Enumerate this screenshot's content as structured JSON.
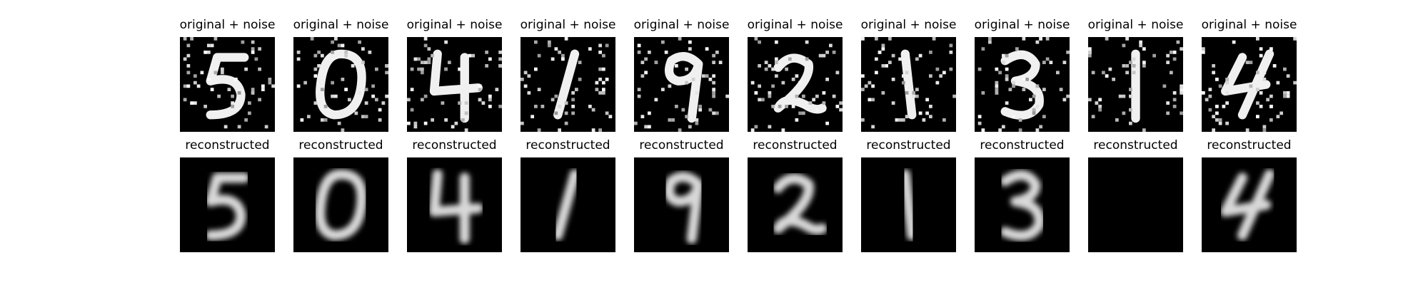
{
  "row_titles": {
    "noisy": "original + noise",
    "reconstructed": "reconstructed"
  },
  "digits": [
    {
      "label": "5"
    },
    {
      "label": "0"
    },
    {
      "label": "4"
    },
    {
      "label": "1"
    },
    {
      "label": "9"
    },
    {
      "label": "2"
    },
    {
      "label": "1"
    },
    {
      "label": "3"
    },
    {
      "label": "1"
    },
    {
      "label": "4"
    }
  ],
  "colors": {
    "image_background": "#000000",
    "digit_stroke": "#f0f0f0",
    "noise_dot": "#ffffff",
    "page_background": "#ffffff"
  }
}
